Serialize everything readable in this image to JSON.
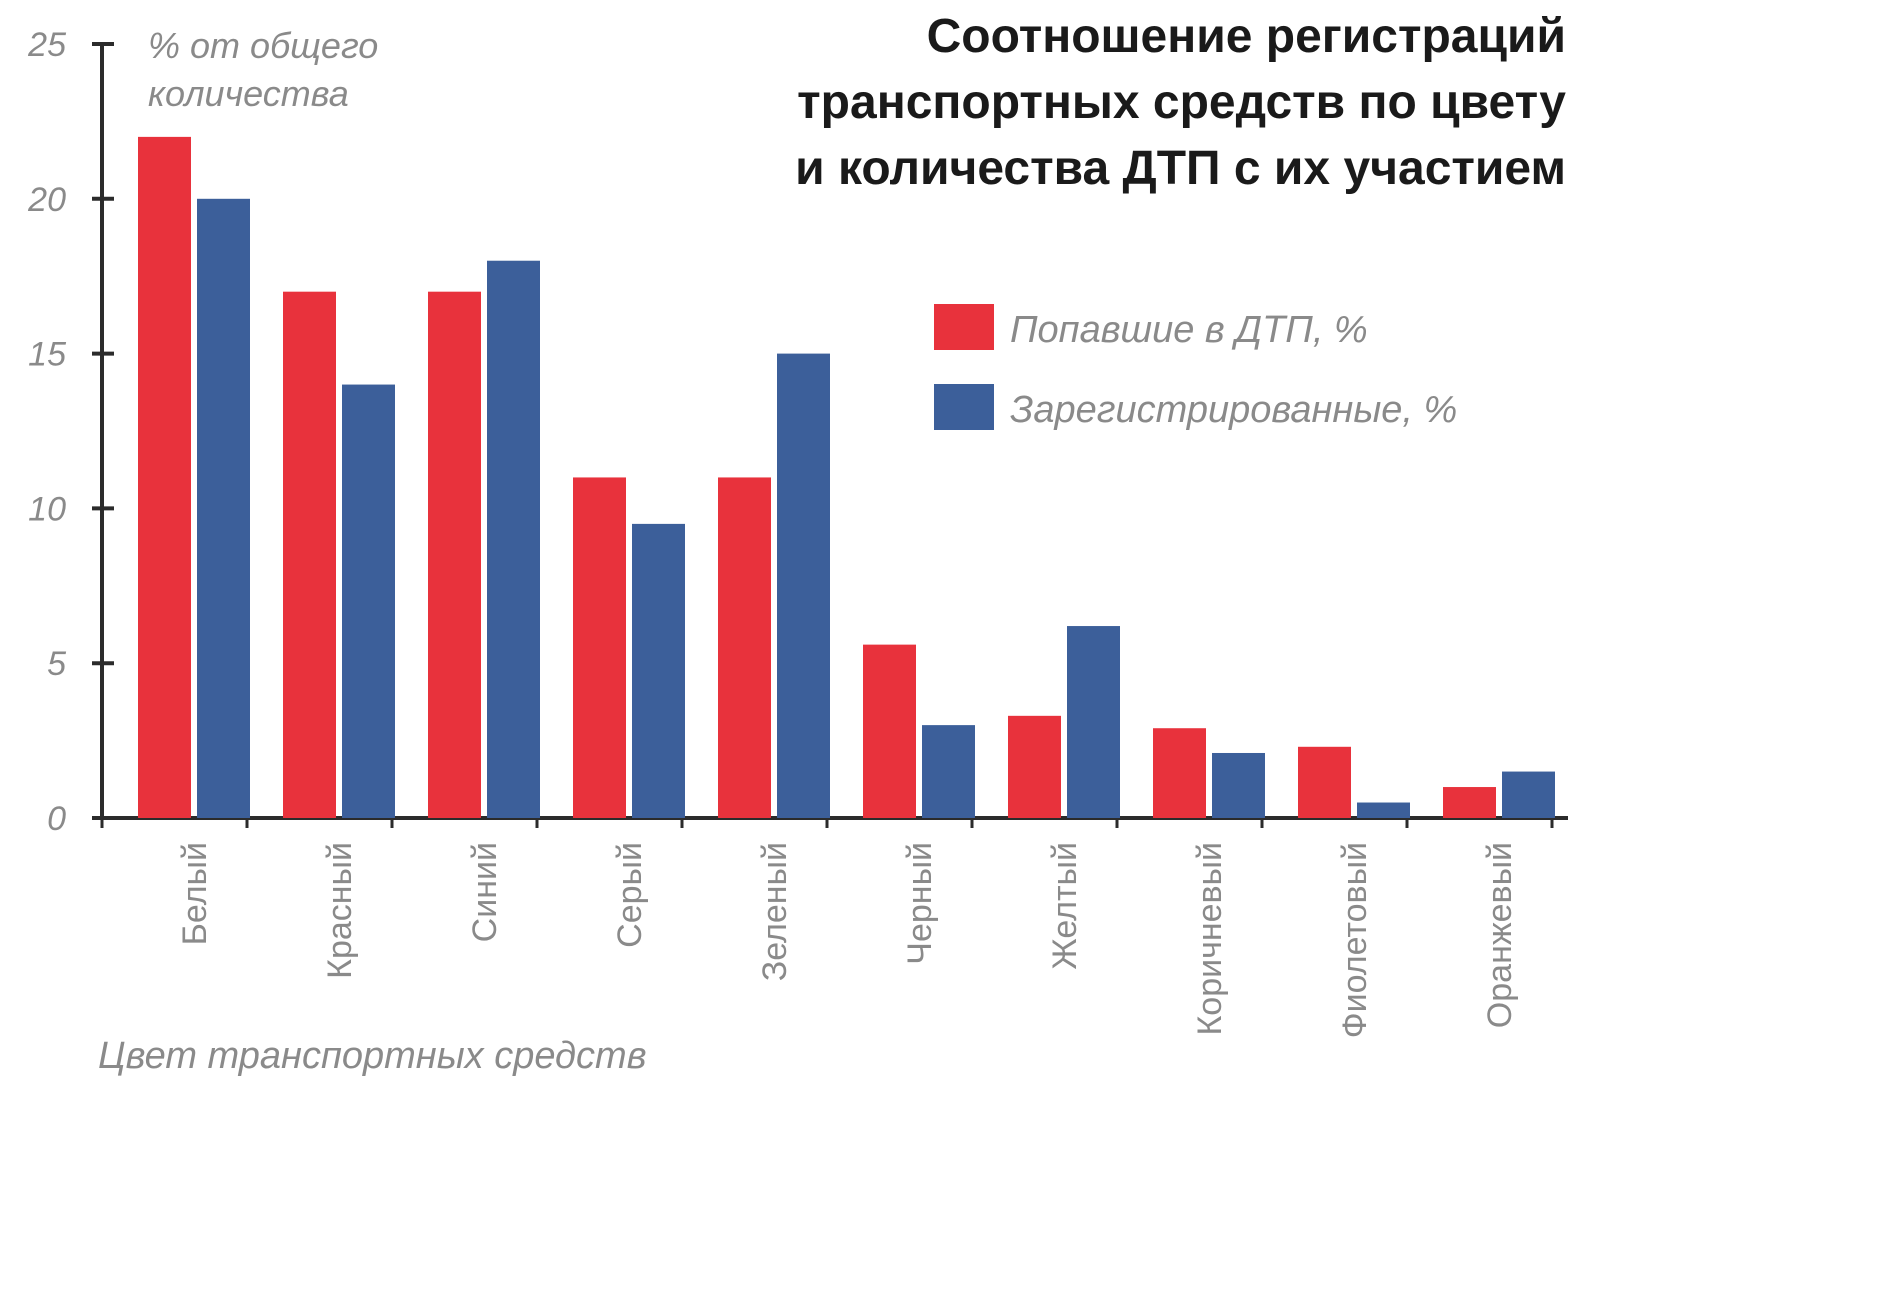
{
  "colors": {
    "series_0": "#e8323c",
    "series_1": "#3c5f9a",
    "axis": "#2b2b2b",
    "text": "#8a8a8a",
    "title": "#1a1a1a"
  },
  "chart_data": {
    "type": "bar",
    "title_lines": [
      "Соотношение регистраций",
      "транспортных средств по цвету",
      "и количества ДТП с их участием"
    ],
    "ylabel_lines": [
      "% от общего",
      "количества"
    ],
    "xlabel": "Цвет транспортных средств",
    "ylim": [
      0,
      25
    ],
    "yticks": [
      0,
      5,
      10,
      15,
      20,
      25
    ],
    "legend_position": "top-right",
    "grid": false,
    "categories": [
      "Белый",
      "Красный",
      "Синий",
      "Серый",
      "Зеленый",
      "Черный",
      "Желтый",
      "Коричневый",
      "Фиолетовый",
      "Оранжевый"
    ],
    "series": [
      {
        "name": "Попавшие в ДТП, %",
        "values": [
          22,
          17,
          17,
          11,
          11,
          5.6,
          3.3,
          2.9,
          2.3,
          1
        ]
      },
      {
        "name": "Зарегистрированные, %",
        "values": [
          20,
          14,
          18,
          9.5,
          15,
          3,
          6.2,
          2.1,
          0.5,
          1.5
        ]
      }
    ]
  }
}
